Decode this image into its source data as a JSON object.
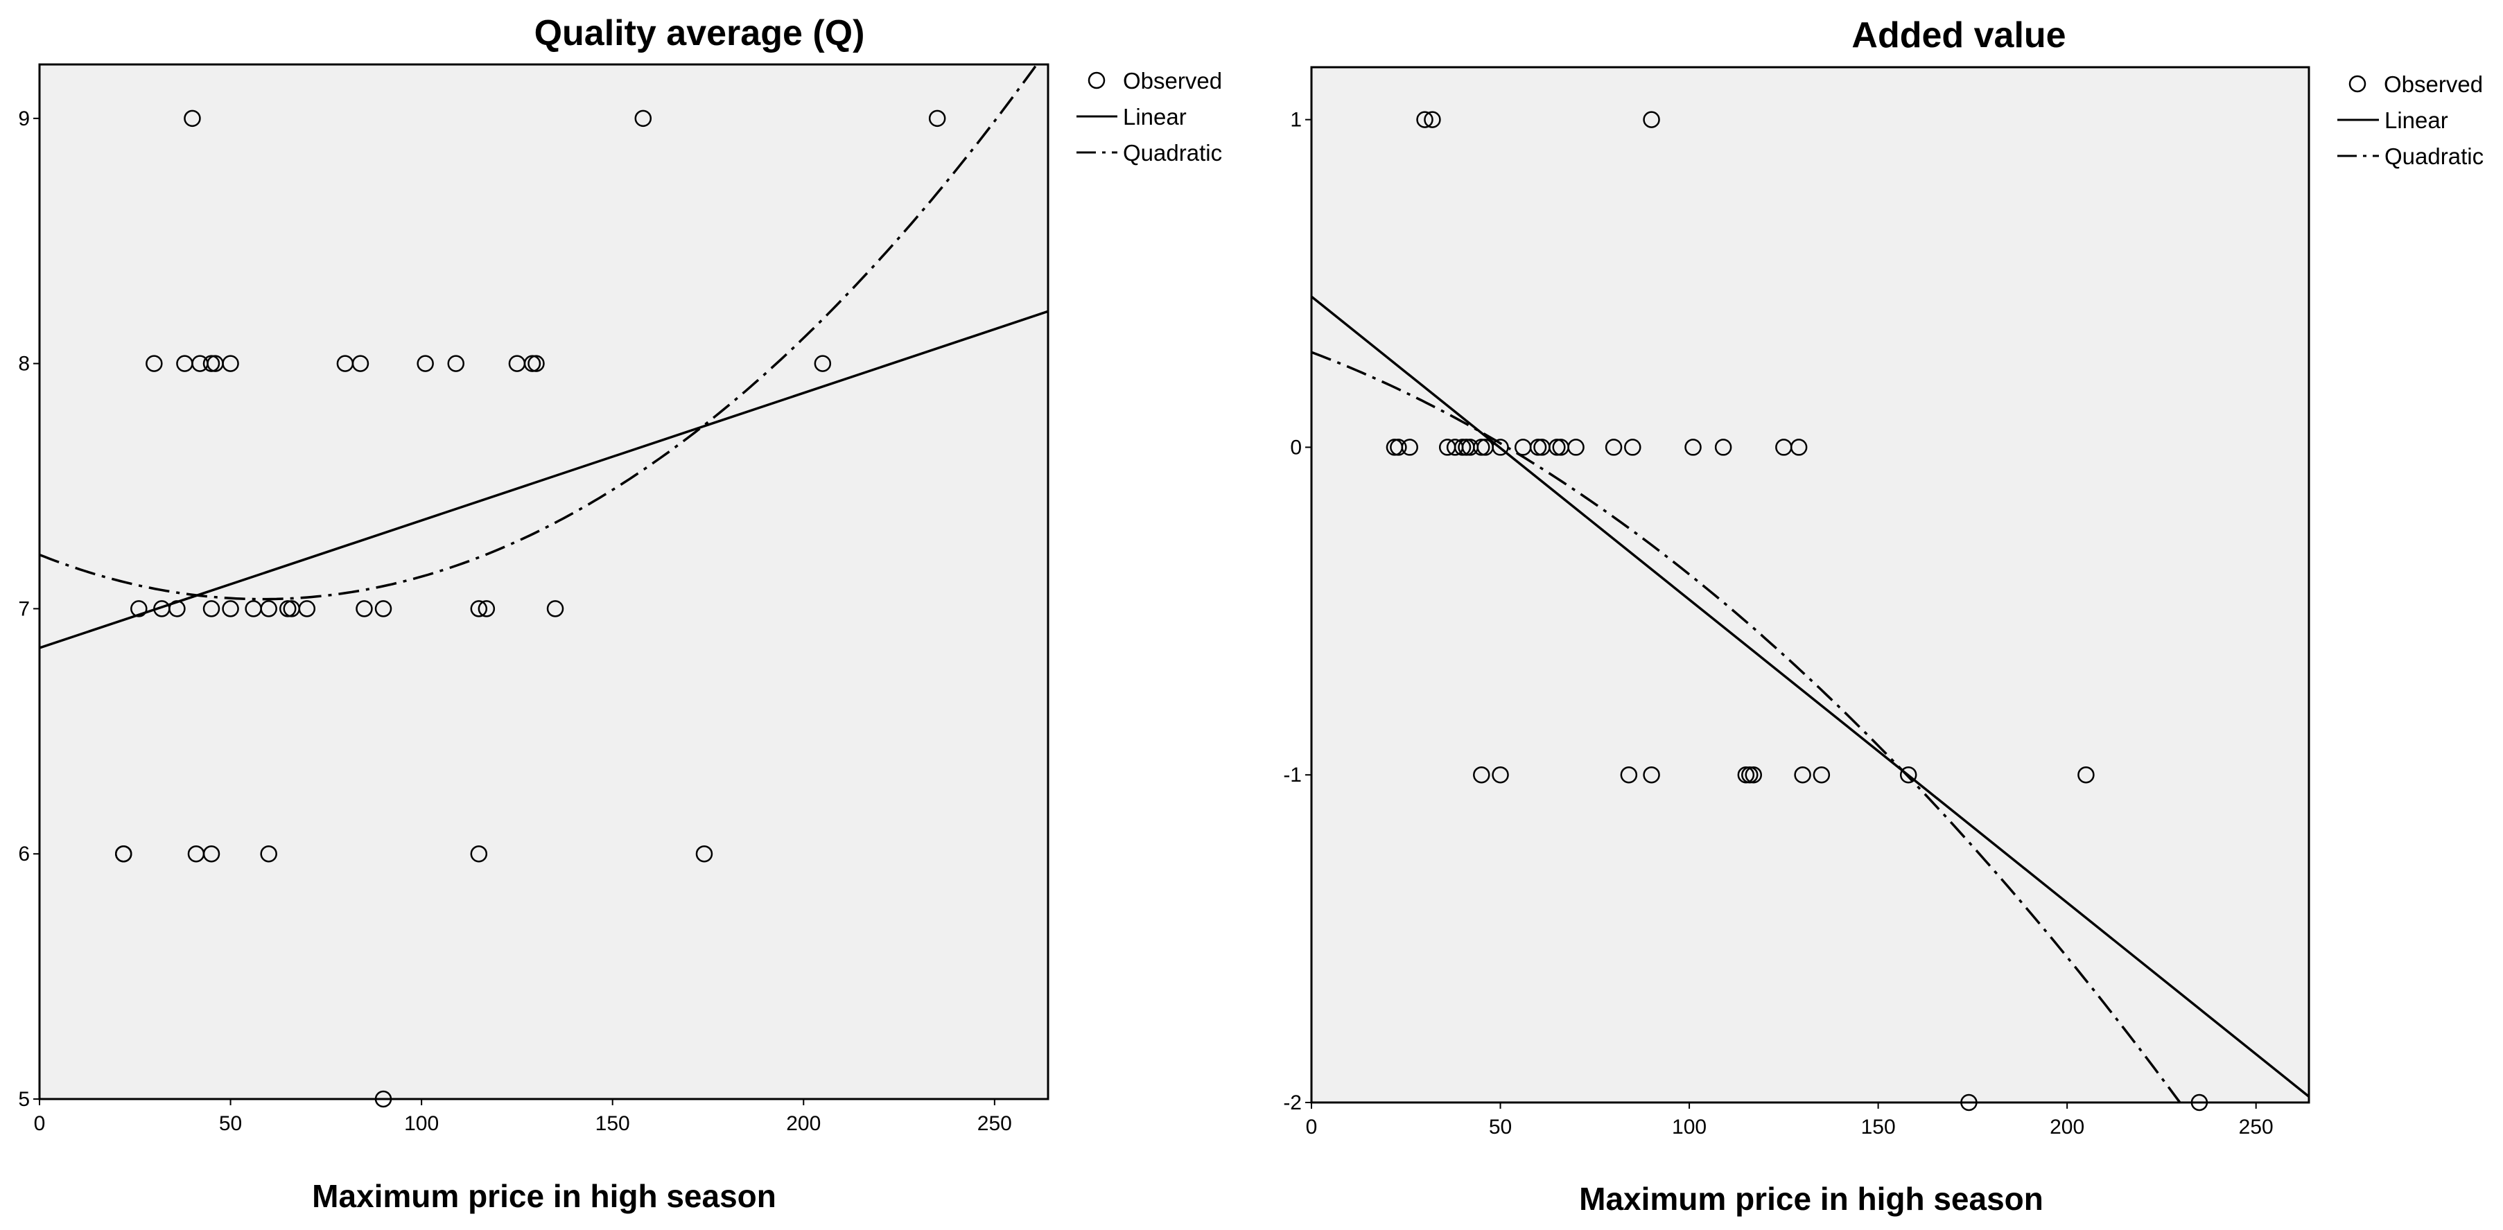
{
  "chart_data": [
    {
      "type": "scatter",
      "title": "Quality average (Q)",
      "xlabel": "Maximum price in high season",
      "ylabel": "",
      "xlim": [
        0,
        264
      ],
      "ylim": [
        5,
        9.22
      ],
      "xticks": [
        0,
        50,
        100,
        150,
        200,
        250
      ],
      "yticks": [
        5,
        6,
        7,
        8,
        9
      ],
      "xtick_labels": [
        "0",
        "50",
        "100",
        "150",
        "200",
        "250"
      ],
      "ytick_labels": [
        "5",
        "6",
        "7",
        "8",
        "9"
      ],
      "grid": false,
      "legend_position": "right",
      "legend": [
        "Observed",
        "Linear",
        "Quadratic"
      ],
      "series": [
        {
          "name": "Observed",
          "points": [
            [
              40,
              9
            ],
            [
              158,
              9
            ],
            [
              235,
              9
            ],
            [
              30,
              8
            ],
            [
              38,
              8
            ],
            [
              42,
              8
            ],
            [
              45,
              8
            ],
            [
              46,
              8
            ],
            [
              50,
              8
            ],
            [
              80,
              8
            ],
            [
              84,
              8
            ],
            [
              101,
              8
            ],
            [
              109,
              8
            ],
            [
              125,
              8
            ],
            [
              129,
              8
            ],
            [
              130,
              8
            ],
            [
              205,
              8
            ],
            [
              26,
              7
            ],
            [
              32,
              7
            ],
            [
              36,
              7
            ],
            [
              45,
              7
            ],
            [
              50,
              7
            ],
            [
              56,
              7
            ],
            [
              60,
              7
            ],
            [
              65,
              7
            ],
            [
              66,
              7
            ],
            [
              70,
              7
            ],
            [
              85,
              7
            ],
            [
              90,
              7
            ],
            [
              115,
              7
            ],
            [
              117,
              7
            ],
            [
              135,
              7
            ],
            [
              22,
              6
            ],
            [
              22,
              6
            ],
            [
              41,
              6
            ],
            [
              45,
              6
            ],
            [
              60,
              6
            ],
            [
              115,
              6
            ],
            [
              174,
              6
            ],
            [
              90,
              5
            ]
          ]
        },
        {
          "name": "Linear",
          "intercept": 6.84,
          "slope": 0.0052
        },
        {
          "name": "Quadratic",
          "a": 7.22,
          "b": -0.0062,
          "c": 5.31e-05
        }
      ]
    },
    {
      "type": "scatter",
      "title": "Added value",
      "xlabel": "Maximum price in high season",
      "ylabel": "",
      "xlim": [
        0,
        264
      ],
      "ylim": [
        -2,
        1.16
      ],
      "xticks": [
        0,
        50,
        100,
        150,
        200,
        250
      ],
      "yticks": [
        -2,
        -1,
        0,
        1
      ],
      "xtick_labels": [
        "0",
        "50",
        "100",
        "150",
        "200",
        "250"
      ],
      "ytick_labels": [
        "-2",
        "-1",
        "0",
        "1"
      ],
      "grid": false,
      "legend_position": "right",
      "legend": [
        "Observed",
        "Linear",
        "Quadratic"
      ],
      "series": [
        {
          "name": "Observed",
          "points": [
            [
              30,
              1
            ],
            [
              32,
              1
            ],
            [
              90,
              1
            ],
            [
              22,
              0
            ],
            [
              23,
              0
            ],
            [
              26,
              0
            ],
            [
              36,
              0
            ],
            [
              38,
              0
            ],
            [
              40,
              0
            ],
            [
              41,
              0
            ],
            [
              42,
              0
            ],
            [
              45,
              0
            ],
            [
              46,
              0
            ],
            [
              50,
              0
            ],
            [
              56,
              0
            ],
            [
              60,
              0
            ],
            [
              61,
              0
            ],
            [
              65,
              0
            ],
            [
              66,
              0
            ],
            [
              70,
              0
            ],
            [
              80,
              0
            ],
            [
              85,
              0
            ],
            [
              101,
              0
            ],
            [
              109,
              0
            ],
            [
              125,
              0
            ],
            [
              129,
              0
            ],
            [
              45,
              -1
            ],
            [
              50,
              -1
            ],
            [
              84,
              -1
            ],
            [
              90,
              -1
            ],
            [
              115,
              -1
            ],
            [
              116,
              -1
            ],
            [
              117,
              -1
            ],
            [
              130,
              -1
            ],
            [
              135,
              -1
            ],
            [
              158,
              -1
            ],
            [
              205,
              -1
            ],
            [
              174,
              -2
            ],
            [
              235,
              -2
            ]
          ]
        },
        {
          "name": "Linear",
          "intercept": 0.46,
          "slope": -0.00925
        },
        {
          "name": "Quadratic",
          "a": 0.29,
          "b": -0.00433,
          "c": -2.45e-05
        }
      ]
    }
  ]
}
